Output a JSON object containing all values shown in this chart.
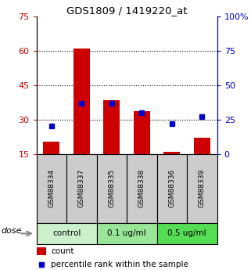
{
  "title": "GDS1809 / 1419220_at",
  "samples": [
    "GSM88334",
    "GSM88337",
    "GSM88335",
    "GSM88338",
    "GSM88336",
    "GSM88339"
  ],
  "count_values": [
    20.5,
    61.0,
    38.5,
    33.5,
    16.0,
    22.0
  ],
  "percentile_values": [
    20,
    37,
    37,
    30,
    22,
    27
  ],
  "groups": [
    {
      "label": "control",
      "indices": [
        0,
        1
      ],
      "color": "#ccf0cc"
    },
    {
      "label": "0.1 ug/ml",
      "indices": [
        2,
        3
      ],
      "color": "#99e699"
    },
    {
      "label": "0.5 ug/ml",
      "indices": [
        4,
        5
      ],
      "color": "#55dd55"
    }
  ],
  "dose_label": "dose",
  "left_ylim": [
    15,
    75
  ],
  "right_ylim": [
    0,
    100
  ],
  "left_yticks": [
    15,
    30,
    45,
    60,
    75
  ],
  "right_yticks": [
    0,
    25,
    50,
    75,
    100
  ],
  "right_yticklabels": [
    "0",
    "25",
    "50",
    "75",
    "100%"
  ],
  "ytick_color_left": "#cc0000",
  "ytick_color_right": "#0000cc",
  "bar_color": "#cc0000",
  "square_color": "#0000cc",
  "legend_count_label": "count",
  "legend_pct_label": "percentile rank within the sample",
  "bg_color": "#ffffff",
  "plot_bg": "#ffffff",
  "sample_label_bg": "#cccccc",
  "gridline_ticks": [
    30,
    45,
    60
  ]
}
